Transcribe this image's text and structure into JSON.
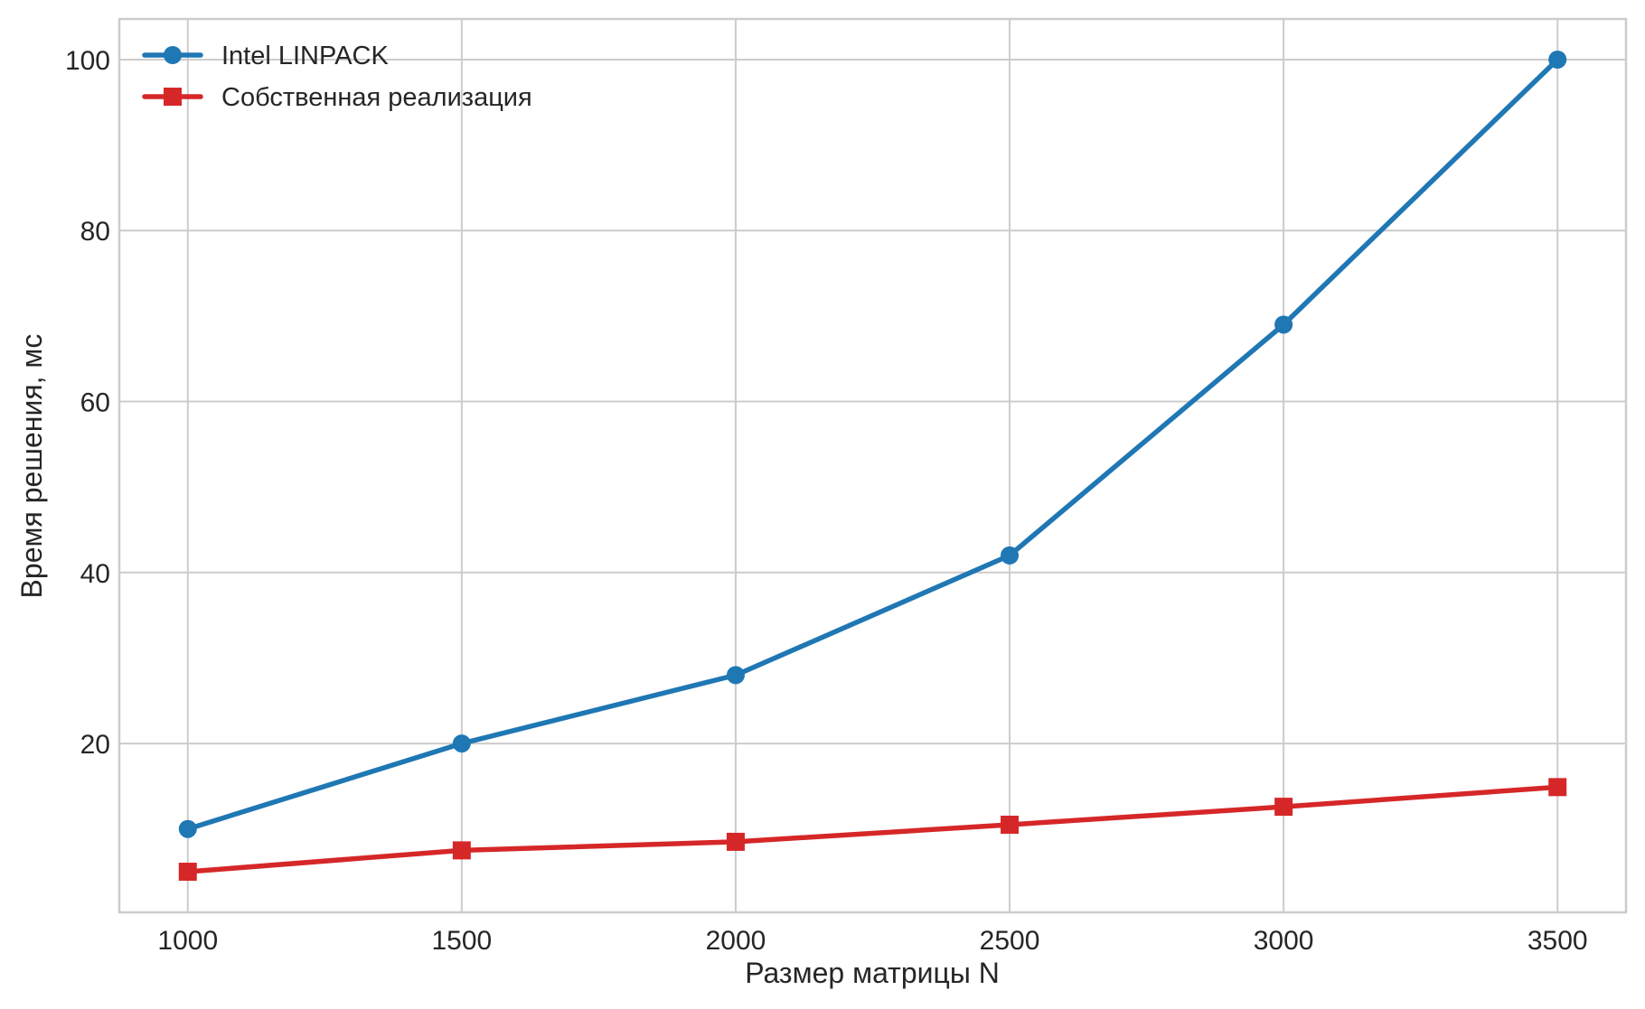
{
  "chart_data": {
    "type": "line",
    "title": "",
    "xlabel": "Размер матрицы N",
    "ylabel": "Время решения, мс",
    "x": [
      1000,
      1500,
      2000,
      2500,
      3000,
      3500
    ],
    "xticks": [
      1000,
      1500,
      2000,
      2500,
      3000,
      3500
    ],
    "yticks": [
      20,
      40,
      60,
      80,
      100
    ],
    "xlim": [
      875,
      3625
    ],
    "ylim": [
      0.25,
      104.75
    ],
    "grid": true,
    "legend_position": "top-left",
    "series": [
      {
        "name": "Intel LINPACK",
        "color": "#1f77b4",
        "marker": "circle",
        "values": [
          10,
          20,
          28,
          42,
          69,
          100
        ]
      },
      {
        "name": "Собственная реализация",
        "color": "#d62728",
        "marker": "square",
        "values": [
          5,
          7.5,
          8.5,
          10.5,
          12.6,
          14.9
        ]
      }
    ]
  }
}
